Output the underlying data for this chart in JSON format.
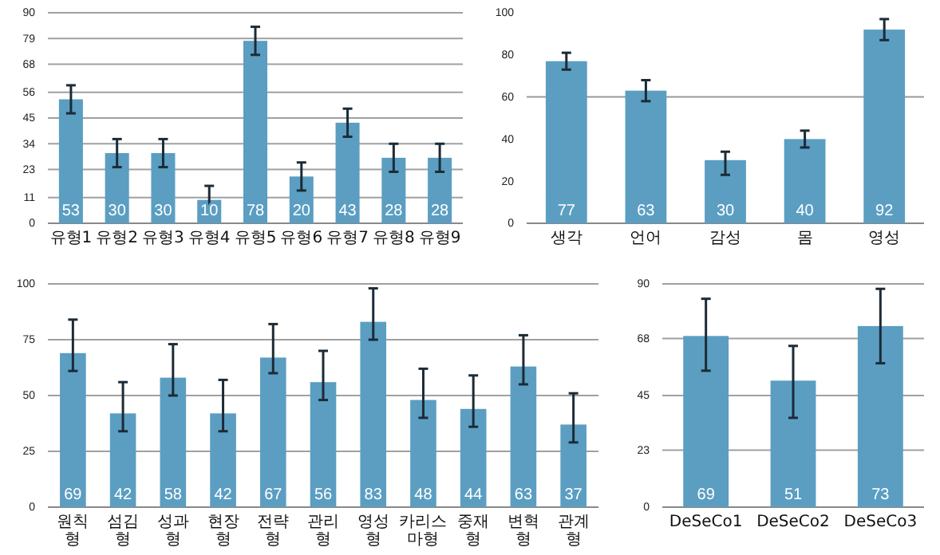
{
  "chart_data": [
    {
      "type": "bar",
      "categories": [
        "유형1",
        "유형2",
        "유형3",
        "유형4",
        "유형5",
        "유형6",
        "유형7",
        "유형8",
        "유형9"
      ],
      "values": [
        53,
        30,
        30,
        10,
        78,
        20,
        43,
        28,
        28
      ],
      "errors": [
        6,
        6,
        6,
        6,
        6,
        6,
        6,
        6,
        6
      ],
      "color": "#5b9ec2",
      "ylim": [
        0,
        90
      ],
      "yticks": [
        0,
        11,
        23,
        34,
        45,
        56,
        68,
        79,
        90
      ],
      "grid": "y",
      "data_labels": true
    },
    {
      "type": "bar",
      "categories": [
        "생각",
        "언어",
        "감성",
        "몸",
        "영성"
      ],
      "values": [
        77,
        63,
        30,
        40,
        92
      ],
      "errors": [
        4,
        5,
        [
          23,
          34
        ],
        4,
        5
      ],
      "color": "#5b9ec2",
      "ylim": [
        0,
        100
      ],
      "yticks": [
        0,
        20,
        40,
        60,
        80,
        100
      ],
      "ref_lines": [
        {
          "axis": "y",
          "value": 60,
          "color": "#999999"
        }
      ],
      "data_labels": true
    },
    {
      "type": "bar",
      "categories": [
        "원칙형",
        "섬김형",
        "성과형",
        "현장형",
        "전략형",
        "관리형",
        "영성형",
        "카리스마형",
        "중재형",
        "변혁형",
        "관계형"
      ],
      "values": [
        69,
        42,
        58,
        42,
        67,
        56,
        83,
        48,
        44,
        63,
        37
      ],
      "errors": [
        [
          61,
          84
        ],
        [
          34,
          56
        ],
        [
          50,
          73
        ],
        [
          34,
          57
        ],
        [
          60,
          82
        ],
        [
          48,
          70
        ],
        [
          75,
          98
        ],
        [
          40,
          62
        ],
        [
          36,
          59
        ],
        [
          55,
          77
        ],
        [
          29,
          51
        ]
      ],
      "color": "#5b9ec2",
      "ylim": [
        0,
        100
      ],
      "yticks": [
        0,
        25,
        50,
        75,
        100
      ],
      "grid": "y",
      "data_labels": true
    },
    {
      "type": "bar",
      "categories": [
        "DeSeCo1",
        "DeSeCo2",
        "DeSeCo3"
      ],
      "values": [
        69,
        51,
        73
      ],
      "errors": [
        [
          55,
          84
        ],
        [
          36,
          65
        ],
        [
          58,
          88
        ]
      ],
      "color": "#5b9ec2",
      "ylim": [
        0,
        90
      ],
      "yticks": [
        0,
        23,
        45,
        68,
        90
      ],
      "grid": "y",
      "data_labels": true
    }
  ]
}
